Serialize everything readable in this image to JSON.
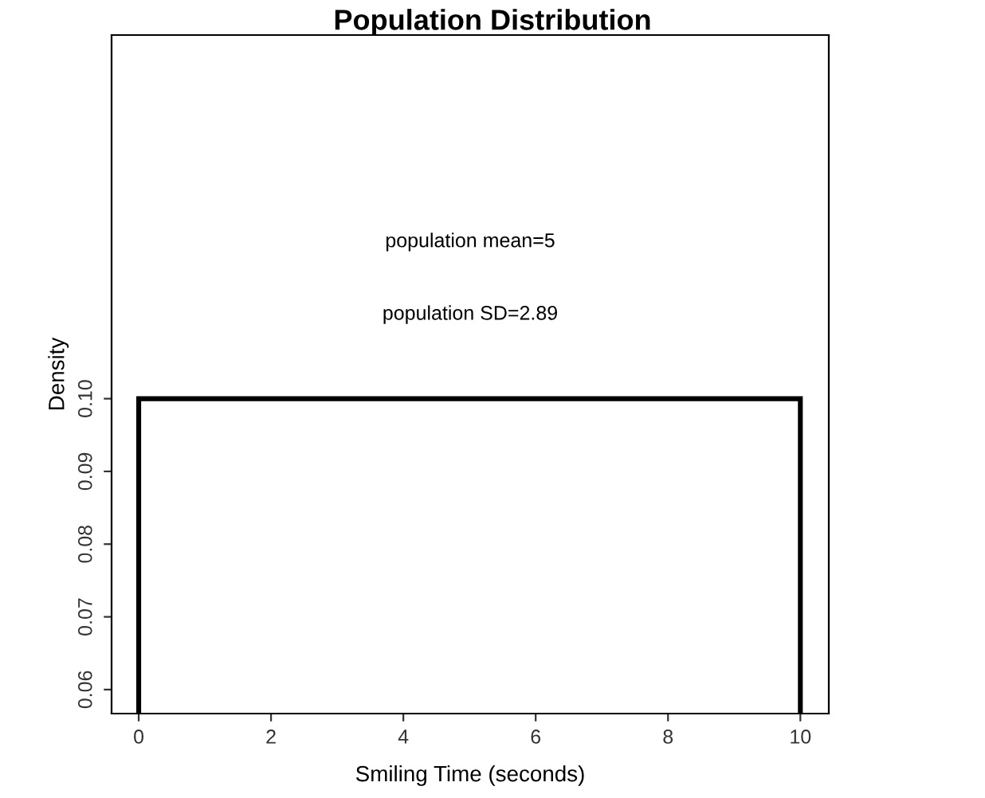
{
  "chart_data": {
    "type": "histogram",
    "title": "Population Distribution",
    "xlabel": "Smiling Time (seconds)",
    "ylabel": "Density",
    "bins": [
      0,
      10
    ],
    "values": [
      0.1
    ],
    "color": "#000000",
    "xlim": [
      -0.41,
      10.43
    ],
    "ylim": [
      0.0567,
      0.15
    ],
    "xticks": [
      0,
      2,
      4,
      6,
      8,
      10
    ],
    "yticks": [
      {
        "value": 0.06,
        "label": "0.06"
      },
      {
        "value": 0.07,
        "label": "0.07"
      },
      {
        "value": 0.08,
        "label": "0.08"
      },
      {
        "value": 0.09,
        "label": "0.09"
      },
      {
        "value": 0.1,
        "label": "0.10"
      }
    ],
    "grid": false,
    "annotations": [
      "population mean=5",
      "population SD=2.89"
    ]
  }
}
